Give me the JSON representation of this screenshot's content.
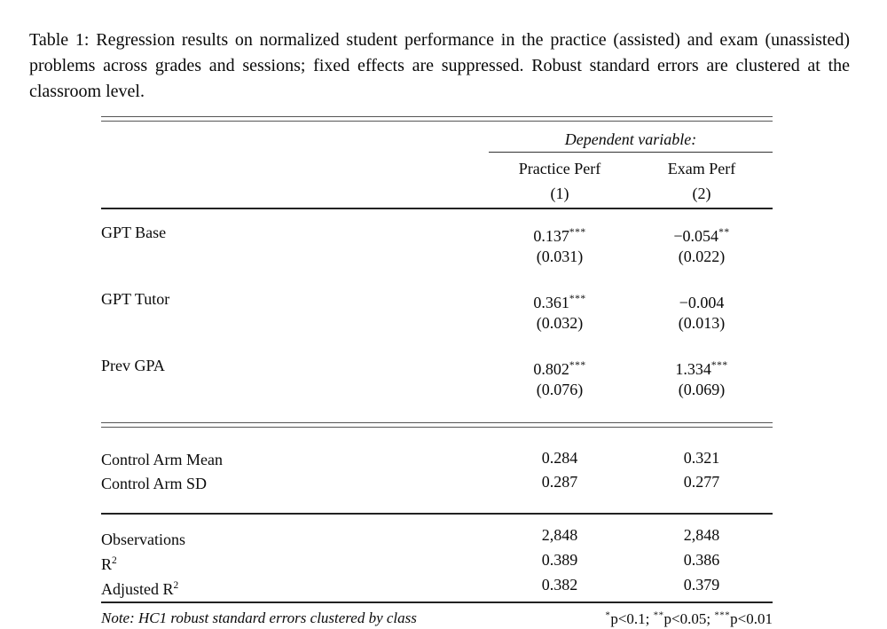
{
  "caption": "Table 1: Regression results on normalized student performance in the practice (assisted) and exam (unassisted) problems across grades and sessions; fixed effects are suppressed. Robust standard errors are clustered at the classroom level.",
  "table": {
    "dependent_variable_label": "Dependent variable:",
    "columns": [
      {
        "name": "Practice Perf",
        "number": "(1)"
      },
      {
        "name": "Exam Perf",
        "number": "(2)"
      }
    ],
    "coefficients": [
      {
        "label": "GPT Base",
        "col1": {
          "est": "0.137",
          "stars": "***",
          "se": "(0.031)"
        },
        "col2": {
          "est": "−0.054",
          "stars": "**",
          "se": "(0.022)"
        }
      },
      {
        "label": "GPT Tutor",
        "col1": {
          "est": "0.361",
          "stars": "***",
          "se": "(0.032)"
        },
        "col2": {
          "est": "−0.004",
          "stars": "",
          "se": "(0.013)"
        }
      },
      {
        "label": "Prev GPA",
        "col1": {
          "est": "0.802",
          "stars": "***",
          "se": "(0.076)"
        },
        "col2": {
          "est": "1.334",
          "stars": "***",
          "se": "(0.069)"
        }
      }
    ],
    "summary": [
      {
        "label": "Control Arm Mean",
        "col1": "0.284",
        "col2": "0.321"
      },
      {
        "label": "Control Arm SD",
        "col1": "0.287",
        "col2": "0.277"
      }
    ],
    "stats": [
      {
        "label": "Observations",
        "label_sup": "",
        "col1": "2,848",
        "col2": "2,848"
      },
      {
        "label": "R",
        "label_sup": "2",
        "col1": "0.389",
        "col2": "0.386"
      },
      {
        "label": "Adjusted R",
        "label_sup": "2",
        "col1": "0.382",
        "col2": "0.379"
      }
    ],
    "note": "Note: HC1 robust standard errors clustered by class",
    "significance": [
      {
        "stars": "*",
        "text": "p<0.1; "
      },
      {
        "stars": "**",
        "text": "p<0.05; "
      },
      {
        "stars": "***",
        "text": "p<0.01"
      }
    ]
  }
}
